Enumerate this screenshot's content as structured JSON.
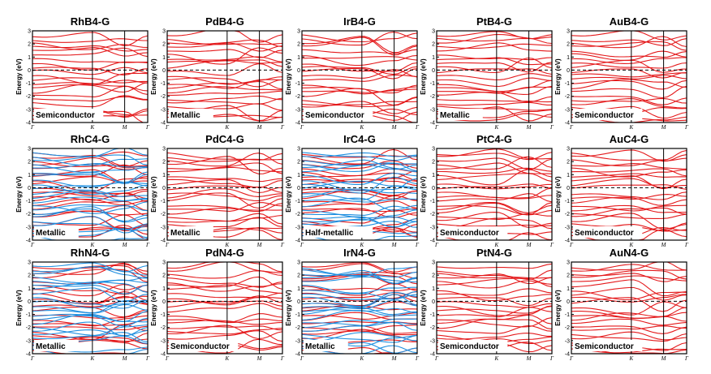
{
  "colors": {
    "spin_up": "#e41a1c",
    "spin_down": "#1f8fe0",
    "frame": "#000000",
    "fermi": "#000000"
  },
  "chart_data": [
    {
      "type": "line",
      "title": "RhB4-G",
      "ylabel": "Energy (eV)",
      "ylim": [
        -4,
        3
      ],
      "yticks": [
        "3",
        "2",
        "1",
        "0",
        "-1",
        "-2",
        "-3",
        "-4"
      ],
      "xticks": [
        "Γ",
        "K",
        "M",
        "Γ"
      ],
      "annotation": "Semiconductor",
      "spin": [
        "up"
      ]
    },
    {
      "type": "line",
      "title": "PdB4-G",
      "ylabel": "Energy (eV)",
      "ylim": [
        -4,
        3
      ],
      "yticks": [
        "3",
        "2",
        "1",
        "0",
        "-1",
        "-2",
        "-3",
        "-4"
      ],
      "xticks": [
        "Γ",
        "K",
        "M",
        "Γ"
      ],
      "annotation": "Metallic",
      "spin": [
        "up"
      ]
    },
    {
      "type": "line",
      "title": "IrB4-G",
      "ylabel": "Energy (eV)",
      "ylim": [
        -4,
        3
      ],
      "yticks": [
        "3",
        "2",
        "1",
        "0",
        "-1",
        "-2",
        "-3",
        "-4"
      ],
      "xticks": [
        "Γ",
        "K",
        "M",
        "Γ"
      ],
      "annotation": "Semiconductor",
      "spin": [
        "up"
      ]
    },
    {
      "type": "line",
      "title": "PtB4-G",
      "ylabel": "Energy (eV)",
      "ylim": [
        -4,
        3
      ],
      "yticks": [
        "3",
        "2",
        "1",
        "0",
        "-1",
        "-2",
        "-3",
        "-4"
      ],
      "xticks": [
        "Γ",
        "K",
        "M",
        "Γ"
      ],
      "annotation": "Metallic",
      "spin": [
        "up"
      ]
    },
    {
      "type": "line",
      "title": "AuB4-G",
      "ylabel": "Energy (eV)",
      "ylim": [
        -4,
        3
      ],
      "yticks": [
        "3",
        "2",
        "1",
        "0",
        "-1",
        "-2",
        "-3",
        "-4"
      ],
      "xticks": [
        "Γ",
        "K",
        "M",
        "Γ"
      ],
      "annotation": "Semiconductor",
      "spin": [
        "up"
      ]
    },
    {
      "type": "line",
      "title": "RhC4-G",
      "ylabel": "Energy (eV)",
      "ylim": [
        -4,
        3
      ],
      "yticks": [
        "3",
        "2",
        "1",
        "0",
        "-1",
        "-2",
        "-3",
        "-4"
      ],
      "xticks": [
        "Γ",
        "K",
        "M",
        "Γ"
      ],
      "annotation": "Metallic",
      "spin": [
        "up",
        "down"
      ]
    },
    {
      "type": "line",
      "title": "PdC4-G",
      "ylabel": "Energy (eV)",
      "ylim": [
        -4,
        3
      ],
      "yticks": [
        "3",
        "2",
        "1",
        "0",
        "-1",
        "-2",
        "-3",
        "-4"
      ],
      "xticks": [
        "Γ",
        "K",
        "M",
        "Γ"
      ],
      "annotation": "Metallic",
      "spin": [
        "up"
      ]
    },
    {
      "type": "line",
      "title": "IrC4-G",
      "ylabel": "Energy (eV)",
      "ylim": [
        -4,
        3
      ],
      "yticks": [
        "3",
        "2",
        "1",
        "0",
        "-1",
        "-2",
        "-3",
        "-4"
      ],
      "xticks": [
        "Γ",
        "K",
        "M",
        "Γ"
      ],
      "annotation": "Half-metallic",
      "spin": [
        "up",
        "down"
      ]
    },
    {
      "type": "line",
      "title": "PtC4-G",
      "ylabel": "Energy (eV)",
      "ylim": [
        -4,
        3
      ],
      "yticks": [
        "3",
        "2",
        "1",
        "0",
        "-1",
        "-2",
        "-3",
        "-4"
      ],
      "xticks": [
        "Γ",
        "K",
        "M",
        "Γ"
      ],
      "annotation": "Semiconductor",
      "spin": [
        "up"
      ]
    },
    {
      "type": "line",
      "title": "AuC4-G",
      "ylabel": "Energy (eV)",
      "ylim": [
        -4,
        3
      ],
      "yticks": [
        "3",
        "2",
        "1",
        "0",
        "-1",
        "-2",
        "-3",
        "-4"
      ],
      "xticks": [
        "Γ",
        "K",
        "M",
        "Γ"
      ],
      "annotation": "Semiconductor",
      "spin": [
        "up"
      ]
    },
    {
      "type": "line",
      "title": "RhN4-G",
      "ylabel": "Energy (eV)",
      "ylim": [
        -4,
        3
      ],
      "yticks": [
        "3",
        "2",
        "1",
        "0",
        "-1",
        "-2",
        "-3",
        "-4"
      ],
      "xticks": [
        "Γ",
        "K",
        "M",
        "Γ"
      ],
      "annotation": "Metallic",
      "spin": [
        "up",
        "down"
      ]
    },
    {
      "type": "line",
      "title": "PdN4-G",
      "ylabel": "Energy (eV)",
      "ylim": [
        -4,
        3
      ],
      "yticks": [
        "3",
        "2",
        "1",
        "0",
        "-1",
        "-2",
        "-3",
        "-4"
      ],
      "xticks": [
        "Γ",
        "K",
        "M",
        "Γ"
      ],
      "annotation": "Semiconductor",
      "spin": [
        "up"
      ]
    },
    {
      "type": "line",
      "title": "IrN4-G",
      "ylabel": "Energy (eV)",
      "ylim": [
        -4,
        3
      ],
      "yticks": [
        "3",
        "2",
        "1",
        "0",
        "-1",
        "-2",
        "-3",
        "-4"
      ],
      "xticks": [
        "Γ",
        "K",
        "M",
        "Γ"
      ],
      "annotation": "Metallic",
      "spin": [
        "up",
        "down"
      ]
    },
    {
      "type": "line",
      "title": "PtN4-G",
      "ylabel": "Energy (eV)",
      "ylim": [
        -4,
        3
      ],
      "yticks": [
        "3",
        "2",
        "1",
        "0",
        "-1",
        "-2",
        "-3",
        "-4"
      ],
      "xticks": [
        "Γ",
        "K",
        "M",
        "Γ"
      ],
      "annotation": "Semiconductor",
      "spin": [
        "up"
      ]
    },
    {
      "type": "line",
      "title": "AuN4-G",
      "ylabel": "Energy (eV)",
      "ylim": [
        -4,
        3
      ],
      "yticks": [
        "3",
        "2",
        "1",
        "0",
        "-1",
        "-2",
        "-3",
        "-4"
      ],
      "xticks": [
        "Γ",
        "K",
        "M",
        "Γ"
      ],
      "annotation": "Semiconductor",
      "spin": [
        "up"
      ]
    }
  ]
}
